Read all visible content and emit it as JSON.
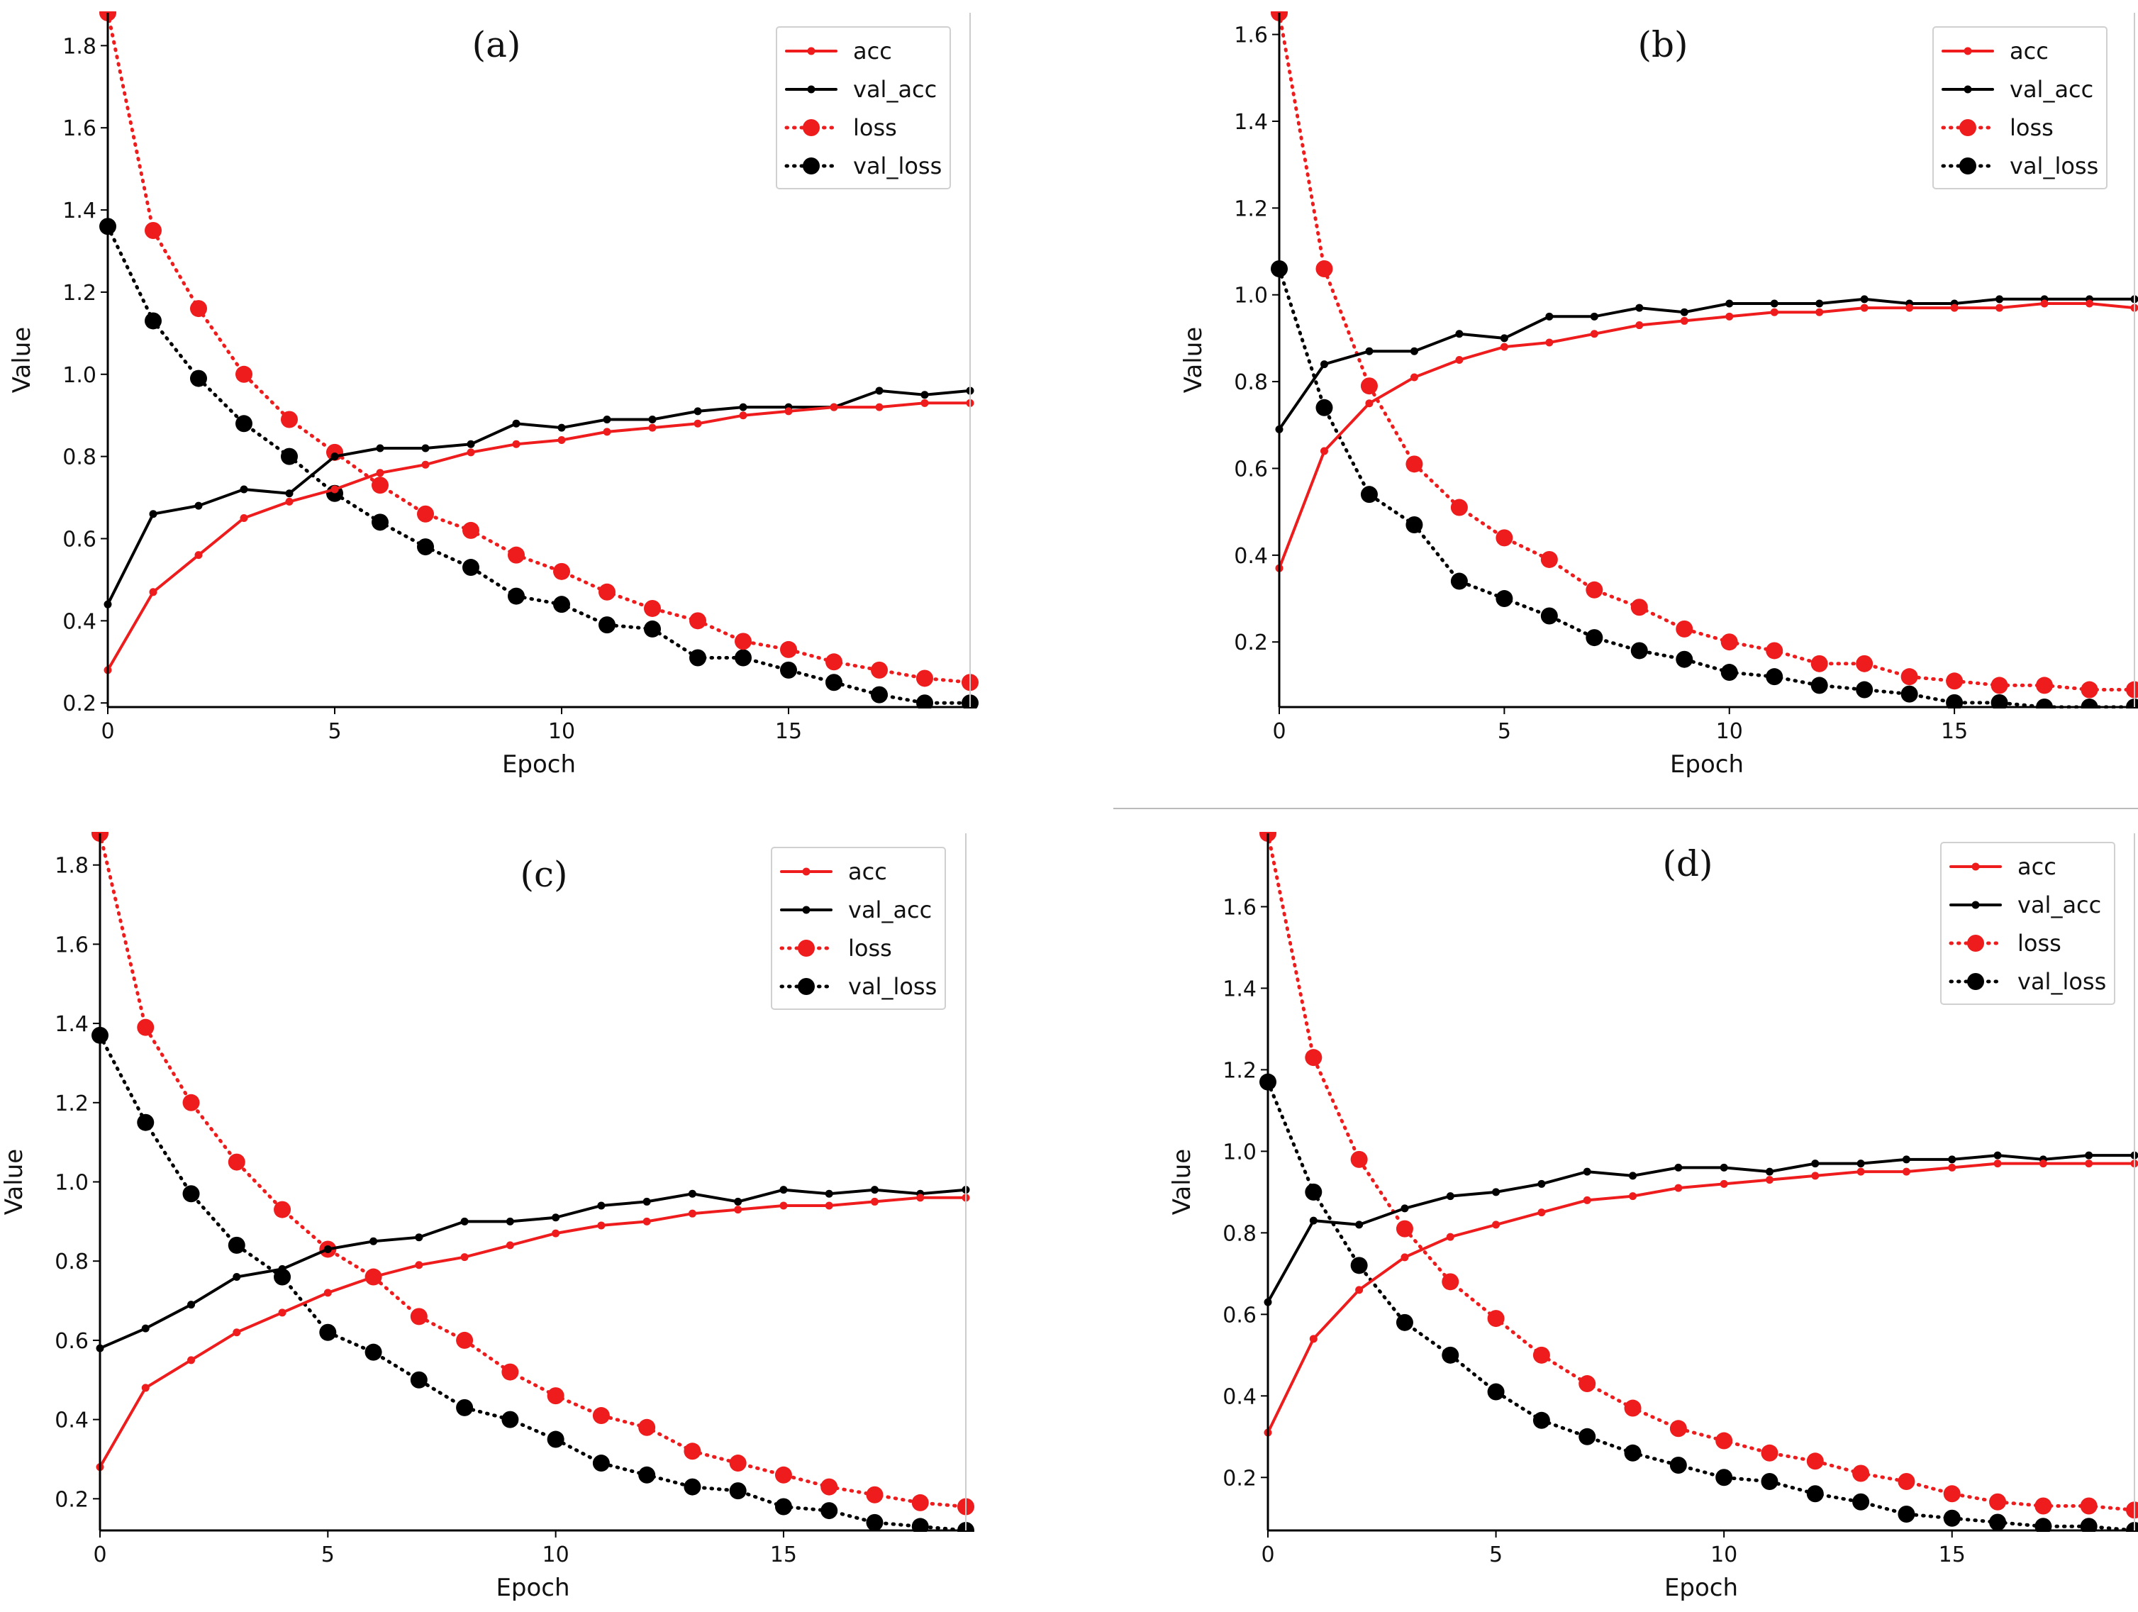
{
  "figure": {
    "xlabel": "Epoch",
    "ylabel": "Value"
  },
  "colors": {
    "acc": "#ee1c1c",
    "val_acc": "#000000",
    "loss": "#ee1c1c",
    "val_loss": "#000000"
  },
  "chart_data": [
    {
      "type": "line",
      "panel_label": "(a)",
      "xlabel": "Epoch",
      "ylabel": "Value",
      "xlim": [
        0,
        19
      ],
      "ylim": [
        0.19,
        1.88
      ],
      "xticks": [
        0,
        5,
        10,
        15
      ],
      "yticks": [
        0.2,
        0.4,
        0.6,
        0.8,
        1.0,
        1.2,
        1.4,
        1.6,
        1.8
      ],
      "legend_position": "top-right",
      "x": [
        0,
        1,
        2,
        3,
        4,
        5,
        6,
        7,
        8,
        9,
        10,
        11,
        12,
        13,
        14,
        15,
        16,
        17,
        18,
        19
      ],
      "series": [
        {
          "name": "acc",
          "style": "solid-small-marker",
          "values": [
            0.28,
            0.47,
            0.56,
            0.65,
            0.69,
            0.72,
            0.76,
            0.78,
            0.81,
            0.83,
            0.84,
            0.86,
            0.87,
            0.88,
            0.9,
            0.91,
            0.92,
            0.92,
            0.93,
            0.93
          ]
        },
        {
          "name": "val_acc",
          "style": "solid-small-marker",
          "values": [
            0.44,
            0.66,
            0.68,
            0.72,
            0.71,
            0.8,
            0.82,
            0.82,
            0.83,
            0.88,
            0.87,
            0.89,
            0.89,
            0.91,
            0.92,
            0.92,
            0.92,
            0.96,
            0.95,
            0.96
          ]
        },
        {
          "name": "loss",
          "style": "dotted-large-marker",
          "values": [
            1.88,
            1.35,
            1.16,
            1.0,
            0.89,
            0.81,
            0.73,
            0.66,
            0.62,
            0.56,
            0.52,
            0.47,
            0.43,
            0.4,
            0.35,
            0.33,
            0.3,
            0.28,
            0.26,
            0.25
          ]
        },
        {
          "name": "val_loss",
          "style": "dotted-large-marker",
          "values": [
            1.36,
            1.13,
            0.99,
            0.88,
            0.8,
            0.71,
            0.64,
            0.58,
            0.53,
            0.46,
            0.44,
            0.39,
            0.38,
            0.31,
            0.31,
            0.28,
            0.25,
            0.22,
            0.2,
            0.2
          ]
        }
      ]
    },
    {
      "type": "line",
      "panel_label": "(b)",
      "xlabel": "Epoch",
      "ylabel": "Value",
      "xlim": [
        0,
        19
      ],
      "ylim": [
        0.05,
        1.65
      ],
      "xticks": [
        0,
        5,
        10,
        15
      ],
      "yticks": [
        0.2,
        0.4,
        0.6,
        0.8,
        1.0,
        1.2,
        1.4,
        1.6
      ],
      "legend_position": "top-right",
      "x": [
        0,
        1,
        2,
        3,
        4,
        5,
        6,
        7,
        8,
        9,
        10,
        11,
        12,
        13,
        14,
        15,
        16,
        17,
        18,
        19
      ],
      "series": [
        {
          "name": "acc",
          "style": "solid-small-marker",
          "values": [
            0.37,
            0.64,
            0.75,
            0.81,
            0.85,
            0.88,
            0.89,
            0.91,
            0.93,
            0.94,
            0.95,
            0.96,
            0.96,
            0.97,
            0.97,
            0.97,
            0.97,
            0.98,
            0.98,
            0.97
          ]
        },
        {
          "name": "val_acc",
          "style": "solid-small-marker",
          "values": [
            0.69,
            0.84,
            0.87,
            0.87,
            0.91,
            0.9,
            0.95,
            0.95,
            0.97,
            0.96,
            0.98,
            0.98,
            0.98,
            0.99,
            0.98,
            0.98,
            0.99,
            0.99,
            0.99,
            0.99
          ]
        },
        {
          "name": "loss",
          "style": "dotted-large-marker",
          "values": [
            1.65,
            1.06,
            0.79,
            0.61,
            0.51,
            0.44,
            0.39,
            0.32,
            0.28,
            0.23,
            0.2,
            0.18,
            0.15,
            0.15,
            0.12,
            0.11,
            0.1,
            0.1,
            0.09,
            0.09
          ]
        },
        {
          "name": "val_loss",
          "style": "dotted-large-marker",
          "values": [
            1.06,
            0.74,
            0.54,
            0.47,
            0.34,
            0.3,
            0.26,
            0.21,
            0.18,
            0.16,
            0.13,
            0.12,
            0.1,
            0.09,
            0.08,
            0.06,
            0.06,
            0.05,
            0.05,
            0.05
          ]
        }
      ]
    },
    {
      "type": "line",
      "panel_label": "(c)",
      "xlabel": "Epoch",
      "ylabel": "Value",
      "xlim": [
        0,
        19
      ],
      "ylim": [
        0.12,
        1.88
      ],
      "xticks": [
        0,
        5,
        10,
        15
      ],
      "yticks": [
        0.2,
        0.4,
        0.6,
        0.8,
        1.0,
        1.2,
        1.4,
        1.6,
        1.8
      ],
      "legend_position": "top-right",
      "x": [
        0,
        1,
        2,
        3,
        4,
        5,
        6,
        7,
        8,
        9,
        10,
        11,
        12,
        13,
        14,
        15,
        16,
        17,
        18,
        19
      ],
      "series": [
        {
          "name": "acc",
          "style": "solid-small-marker",
          "values": [
            0.28,
            0.48,
            0.55,
            0.62,
            0.67,
            0.72,
            0.76,
            0.79,
            0.81,
            0.84,
            0.87,
            0.89,
            0.9,
            0.92,
            0.93,
            0.94,
            0.94,
            0.95,
            0.96,
            0.96
          ]
        },
        {
          "name": "val_acc",
          "style": "solid-small-marker",
          "values": [
            0.58,
            0.63,
            0.69,
            0.76,
            0.78,
            0.83,
            0.85,
            0.86,
            0.9,
            0.9,
            0.91,
            0.94,
            0.95,
            0.97,
            0.95,
            0.98,
            0.97,
            0.98,
            0.97,
            0.98
          ]
        },
        {
          "name": "loss",
          "style": "dotted-large-marker",
          "values": [
            1.88,
            1.39,
            1.2,
            1.05,
            0.93,
            0.83,
            0.76,
            0.66,
            0.6,
            0.52,
            0.46,
            0.41,
            0.38,
            0.32,
            0.29,
            0.26,
            0.23,
            0.21,
            0.19,
            0.18
          ]
        },
        {
          "name": "val_loss",
          "style": "dotted-large-marker",
          "values": [
            1.37,
            1.15,
            0.97,
            0.84,
            0.76,
            0.62,
            0.57,
            0.5,
            0.43,
            0.4,
            0.35,
            0.29,
            0.26,
            0.23,
            0.22,
            0.18,
            0.17,
            0.14,
            0.13,
            0.12
          ]
        }
      ]
    },
    {
      "type": "line",
      "panel_label": "(d)",
      "xlabel": "Epoch",
      "ylabel": "Value",
      "xlim": [
        0,
        19
      ],
      "ylim": [
        0.07,
        1.78
      ],
      "xticks": [
        0,
        5,
        10,
        15
      ],
      "yticks": [
        0.2,
        0.4,
        0.6,
        0.8,
        1.0,
        1.2,
        1.4,
        1.6
      ],
      "legend_position": "top-right",
      "x": [
        0,
        1,
        2,
        3,
        4,
        5,
        6,
        7,
        8,
        9,
        10,
        11,
        12,
        13,
        14,
        15,
        16,
        17,
        18,
        19
      ],
      "series": [
        {
          "name": "acc",
          "style": "solid-small-marker",
          "values": [
            0.31,
            0.54,
            0.66,
            0.74,
            0.79,
            0.82,
            0.85,
            0.88,
            0.89,
            0.91,
            0.92,
            0.93,
            0.94,
            0.95,
            0.95,
            0.96,
            0.97,
            0.97,
            0.97,
            0.97
          ]
        },
        {
          "name": "val_acc",
          "style": "solid-small-marker",
          "values": [
            0.63,
            0.83,
            0.82,
            0.86,
            0.89,
            0.9,
            0.92,
            0.95,
            0.94,
            0.96,
            0.96,
            0.95,
            0.97,
            0.97,
            0.98,
            0.98,
            0.99,
            0.98,
            0.99,
            0.99
          ]
        },
        {
          "name": "loss",
          "style": "dotted-large-marker",
          "values": [
            1.78,
            1.23,
            0.98,
            0.81,
            0.68,
            0.59,
            0.5,
            0.43,
            0.37,
            0.32,
            0.29,
            0.26,
            0.24,
            0.21,
            0.19,
            0.16,
            0.14,
            0.13,
            0.13,
            0.12
          ]
        },
        {
          "name": "val_loss",
          "style": "dotted-large-marker",
          "values": [
            1.17,
            0.9,
            0.72,
            0.58,
            0.5,
            0.41,
            0.34,
            0.3,
            0.26,
            0.23,
            0.2,
            0.19,
            0.16,
            0.14,
            0.11,
            0.1,
            0.09,
            0.08,
            0.08,
            0.07
          ]
        }
      ]
    }
  ]
}
